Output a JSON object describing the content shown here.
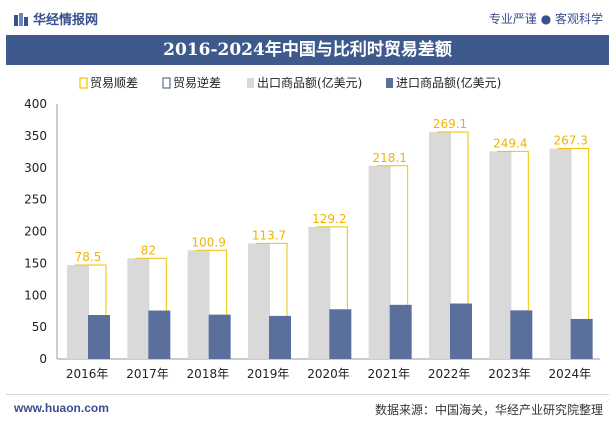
{
  "header": {
    "brand": "华经情报网",
    "slogan": "专业严谨 ● 客观科学"
  },
  "colors": {
    "title_band": "#3e5a8c",
    "export_bar": "#d9d9d9",
    "import_bar": "#5b6f9c",
    "surplus_line": "#f2c200",
    "surplus_label": "#f0b400"
  },
  "chart_data": {
    "type": "bar",
    "title": "2016-2024年中国与比利时贸易差额",
    "categories": [
      "2016年",
      "2017年",
      "2018年",
      "2019年",
      "2020年",
      "2021年",
      "2022年",
      "2023年",
      "2024年"
    ],
    "legend": [
      "贸易顺差",
      "贸易逆差",
      "出口商品额(亿美元)",
      "进口商品额(亿美元)"
    ],
    "legend_placement": "top",
    "series": [
      {
        "name": "出口商品额(亿美元)",
        "values": [
          147.5,
          158,
          170.5,
          181.3,
          207.2,
          303.1,
          356.1,
          325.7,
          330.1
        ]
      },
      {
        "name": "进口商品额(亿美元)",
        "values": [
          69,
          76,
          69.6,
          67.6,
          78,
          85,
          87,
          76.3,
          62.8
        ]
      },
      {
        "name": "贸易顺差",
        "values": [
          78.5,
          82,
          100.9,
          113.7,
          129.2,
          218.1,
          269.1,
          249.4,
          267.3
        ]
      }
    ],
    "surplus_labels": [
      "78.5",
      "82",
      "100.9",
      "113.7",
      "129.2",
      "218.1",
      "269.1",
      "249.4",
      "267.3"
    ],
    "yticks": [
      "0",
      "50",
      "100",
      "150",
      "200",
      "250",
      "300",
      "350",
      "400"
    ],
    "ylim": [
      0,
      400
    ],
    "grid": false
  },
  "footer": {
    "website": "www.huaon.com",
    "source": "数据来源：中国海关，华经产业研究院整理"
  }
}
